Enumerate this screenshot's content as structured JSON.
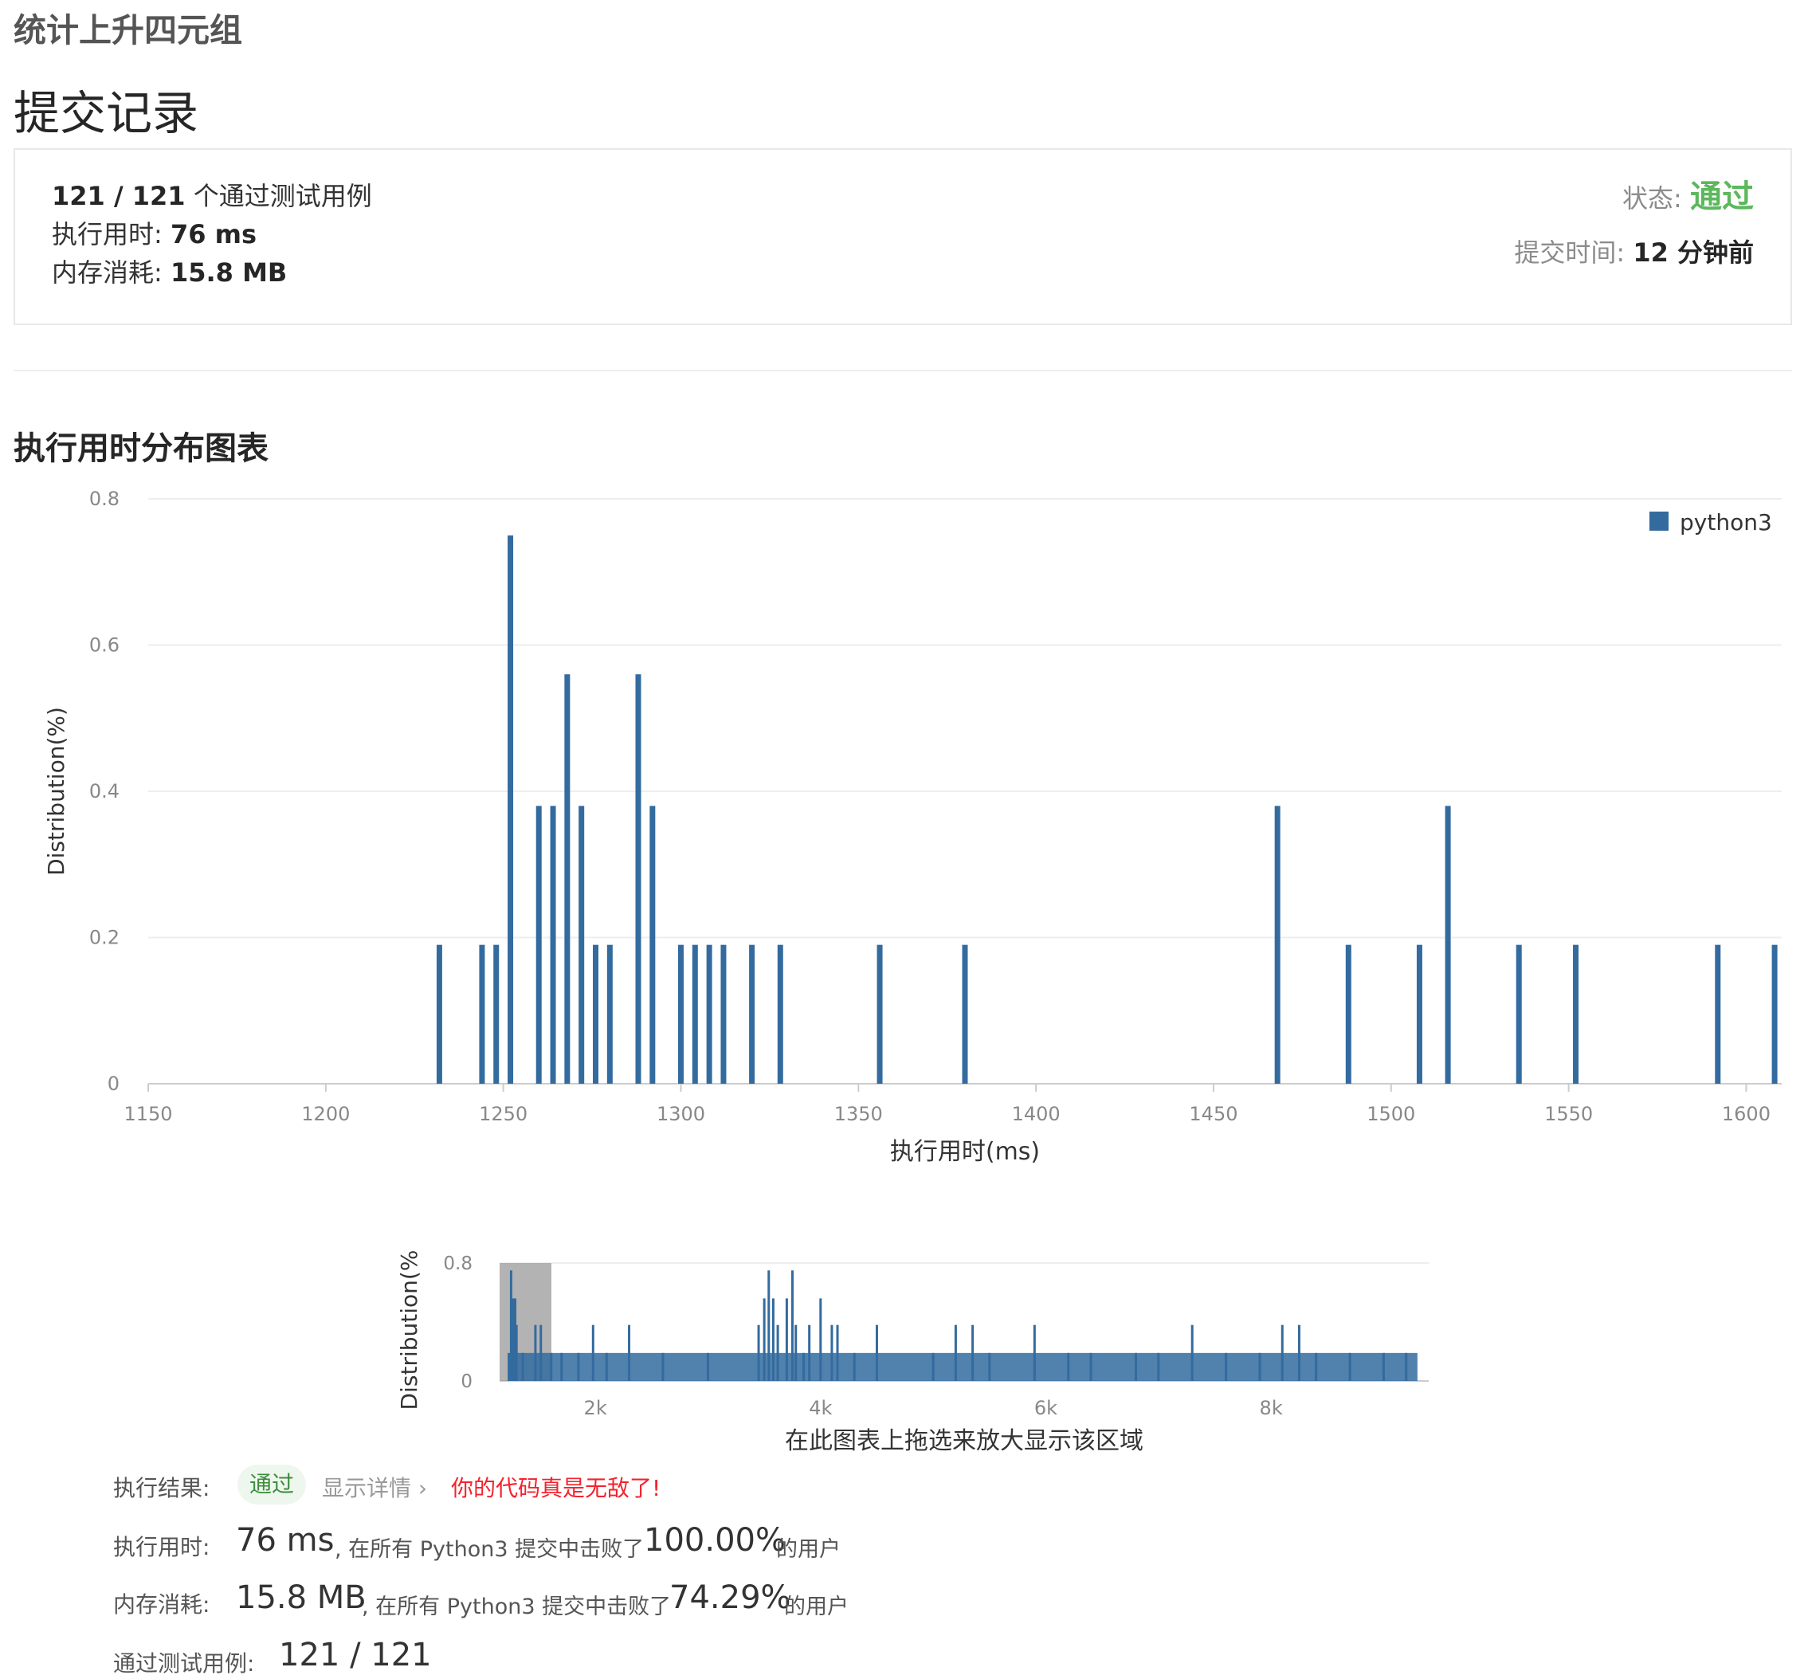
{
  "problem_title": "统计上升四元组",
  "page_title": "提交记录",
  "summary": {
    "passed_count": "121 / 121",
    "passed_label": "个通过测试用例",
    "runtime_label": "执行用时:",
    "runtime_value": "76 ms",
    "memory_label": "内存消耗:",
    "memory_value": "15.8 MB",
    "status_label": "状态:",
    "status_value": "通过",
    "submit_time_label": "提交时间:",
    "submit_time_value": "12 分钟前"
  },
  "section_title": "执行用时分布图表",
  "chart_data": [
    {
      "type": "bar",
      "title": "",
      "xlabel": "执行用时(ms)",
      "ylabel": "Distribution(%)",
      "xlim": [
        1150,
        1610
      ],
      "ylim": [
        0,
        0.8
      ],
      "xticks": [
        1150,
        1200,
        1250,
        1300,
        1350,
        1400,
        1450,
        1500,
        1550,
        1600
      ],
      "yticks": [
        0,
        0.2,
        0.4,
        0.6,
        0.8
      ],
      "ytick_labels": [
        "0",
        "0.2",
        "0.4",
        "0.6",
        "0.8"
      ],
      "grid": true,
      "legend": "top-right",
      "color": "#336b9f",
      "series": [
        {
          "name": "python3",
          "x": [
            1232,
            1244,
            1248,
            1252,
            1260,
            1264,
            1268,
            1272,
            1276,
            1280,
            1288,
            1292,
            1300,
            1304,
            1308,
            1312,
            1320,
            1328,
            1356,
            1380,
            1468,
            1488,
            1508,
            1516,
            1536,
            1552,
            1592,
            1608
          ],
          "values": [
            0.19,
            0.19,
            0.19,
            0.75,
            0.38,
            0.38,
            0.56,
            0.38,
            0.19,
            0.19,
            0.56,
            0.38,
            0.19,
            0.19,
            0.19,
            0.19,
            0.19,
            0.19,
            0.19,
            0.19,
            0.38,
            0.19,
            0.19,
            0.38,
            0.19,
            0.19,
            0.19,
            0.19
          ]
        }
      ]
    },
    {
      "type": "bar",
      "title": "",
      "xlabel": "在此图表上拖选来放大显示该区域",
      "ylabel": "Distribution(%",
      "xlim": [
        1150,
        9400
      ],
      "ylim": [
        0,
        0.8
      ],
      "xticks": [
        2000,
        4000,
        6000,
        8000
      ],
      "xtick_labels": [
        "2k",
        "4k",
        "6k",
        "8k"
      ],
      "yticks": [
        0,
        0.8
      ],
      "ytick_labels": [
        "0",
        "0.8"
      ],
      "grid": true,
      "color": "#336b9f",
      "selection": [
        1150,
        1610
      ],
      "series": [
        {
          "name": "",
          "x": [
            1232,
            1252,
            1268,
            1288,
            1300,
            1356,
            1468,
            1516,
            1608,
            1700,
            1850,
            1980,
            2100,
            2300,
            2600,
            3000,
            3450,
            3500,
            3540,
            3580,
            3620,
            3700,
            3750,
            3780,
            3850,
            3900,
            4000,
            4100,
            4150,
            4300,
            4500,
            5000,
            5200,
            5350,
            5500,
            5900,
            6200,
            6400,
            6800,
            7000,
            7300,
            7600,
            7900,
            8100,
            8250,
            8400,
            8700,
            9000,
            9200
          ],
          "values": [
            0.19,
            0.75,
            0.56,
            0.56,
            0.38,
            0.19,
            0.38,
            0.38,
            0.19,
            0.19,
            0.19,
            0.38,
            0.19,
            0.38,
            0.19,
            0.19,
            0.38,
            0.56,
            0.75,
            0.56,
            0.38,
            0.56,
            0.75,
            0.38,
            0.19,
            0.38,
            0.56,
            0.38,
            0.38,
            0.19,
            0.38,
            0.19,
            0.38,
            0.38,
            0.19,
            0.38,
            0.19,
            0.19,
            0.19,
            0.19,
            0.38,
            0.19,
            0.19,
            0.38,
            0.38,
            0.19,
            0.19,
            0.19,
            0.19
          ]
        }
      ]
    }
  ],
  "result": {
    "result_label": "执行结果:",
    "result_value": "通过",
    "show_details": "显示详情 ›",
    "praise": "你的代码真是无敌了!",
    "runtime_label": "执行用时:",
    "runtime_value": "76 ms",
    "runtime_text": ", 在所有 Python3 提交中击败了",
    "runtime_percent": "100.00%",
    "runtime_suffix": "的用户",
    "memory_label": "内存消耗:",
    "memory_value": "15.8 MB",
    "memory_text": ", 在所有 Python3 提交中击败了",
    "memory_percent": "74.29%",
    "memory_suffix": "的用户",
    "cases_label": "通过测试用例:",
    "cases_value": "121 / 121"
  }
}
